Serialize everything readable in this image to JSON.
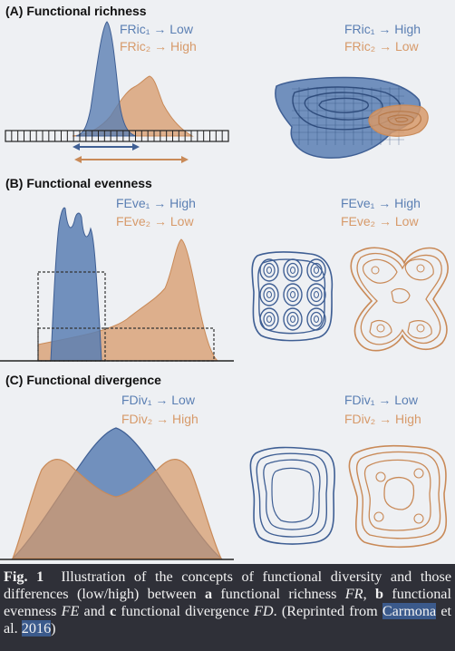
{
  "panels": {
    "a": {
      "title": "(A) Functional richness",
      "left": {
        "line1": "FRic₁ → Low",
        "line2": "FRic₂ → High"
      },
      "right": {
        "line1": "FRic₁ → High",
        "line2": "FRic₂ → Low"
      }
    },
    "b": {
      "title": "(B) Functional evenness",
      "left": {
        "line1": "FEve₁ → High",
        "line2": "FEve₂ → Low"
      },
      "right": {
        "line1": "FEve₁ → High",
        "line2": "FEve₂ → Low"
      }
    },
    "c": {
      "title": "(C) Functional divergence",
      "left": {
        "line1": "FDiv₁ → Low",
        "line2": "FDiv₂ → High"
      },
      "right": {
        "line1": "FDiv₁ → Low",
        "line2": "FDiv₂ → High"
      }
    }
  },
  "caption": {
    "fig_label": "Fig. 1",
    "t1": "Illustration of the concepts of functional diversity and those differences (low/high) between ",
    "a": "a",
    "t2": " functional richness ",
    "fr": "FR",
    "t3": ", ",
    "b": "b",
    "t4": " functional evenness ",
    "fe": "FE",
    "t5": " and ",
    "c": "c",
    "t6": " functional divergence ",
    "fd": "FD",
    "t7": ". (Reprinted from ",
    "ref_author": "Carmona",
    "t8": " et al. ",
    "ref_year": "2016",
    "t9": ")"
  },
  "colors": {
    "blue": "#5b7fb3",
    "orange": "#d79a6a",
    "background": "#2f3038",
    "figure_bg": "#eef0f3"
  }
}
